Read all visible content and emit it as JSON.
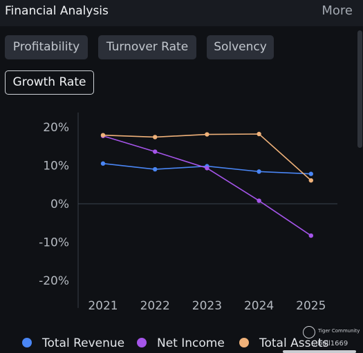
{
  "header": {
    "title": "Financial Analysis",
    "more_label": "More"
  },
  "tabs": [
    {
      "label": "Profitability",
      "active": false
    },
    {
      "label": "Turnover Rate",
      "active": false
    },
    {
      "label": "Solvency",
      "active": false
    },
    {
      "label": "Growth Rate",
      "active": true
    }
  ],
  "watermark": {
    "brand": "Tiger Community",
    "user": "...bull1669"
  },
  "chart_data": {
    "type": "line",
    "title": "",
    "xlabel": "",
    "ylabel": "",
    "x": [
      "2021",
      "2022",
      "2023",
      "2024",
      "2025"
    ],
    "ylim": [
      -0.25,
      0.22
    ],
    "yticks": [
      0.2,
      0.1,
      0.0,
      -0.1,
      -0.2
    ],
    "ytick_labels": [
      "20%",
      "10%",
      "0%",
      "-10%",
      "-20%"
    ],
    "grid": false,
    "legend_position": "bottom",
    "series": [
      {
        "name": "Total Revenue",
        "color": "#4a86f5",
        "values": [
          0.105,
          0.09,
          0.098,
          0.084,
          0.078
        ]
      },
      {
        "name": "Net Income",
        "color": "#a555ea",
        "values": [
          0.177,
          0.136,
          0.093,
          0.008,
          -0.083
        ]
      },
      {
        "name": "Total Assets",
        "color": "#f0b27a",
        "values": [
          0.179,
          0.174,
          0.181,
          0.182,
          0.061
        ]
      }
    ]
  }
}
